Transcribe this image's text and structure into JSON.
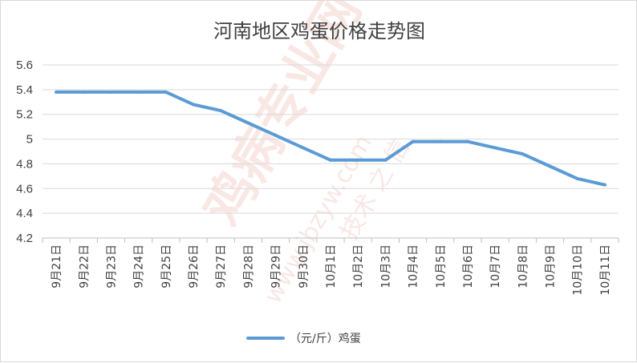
{
  "chart_data": {
    "type": "line",
    "title": "河南地区鸡蛋价格走势图",
    "categories": [
      "9月21日",
      "9月22日",
      "9月23日",
      "9月24日",
      "9月25日",
      "9月26日",
      "9月27日",
      "9月28日",
      "9月29日",
      "9月30日",
      "10月1日",
      "10月2日",
      "10月3日",
      "10月4日",
      "10月5日",
      "10月6日",
      "10月7日",
      "10月8日",
      "10月9日",
      "10月10日",
      "10月11日"
    ],
    "series": [
      {
        "name": "（元/斤）鸡蛋",
        "values": [
          5.38,
          5.38,
          5.38,
          5.38,
          5.38,
          5.28,
          5.23,
          5.13,
          5.03,
          4.93,
          4.83,
          4.83,
          4.83,
          4.98,
          4.98,
          4.98,
          4.93,
          4.88,
          4.78,
          4.68,
          4.63
        ]
      }
    ],
    "ylim": [
      4.2,
      5.6
    ],
    "yticks": [
      "5.6",
      "5.4",
      "5.2",
      "5",
      "4.8",
      "4.6",
      "4.4",
      "4.2"
    ],
    "grid": true,
    "legend": "bottom",
    "line_color": "#5b9bd5"
  },
  "watermark": {
    "main": "鸡病专业网",
    "url": "www.jbzyw.com",
    "small": "技术 之 信"
  }
}
